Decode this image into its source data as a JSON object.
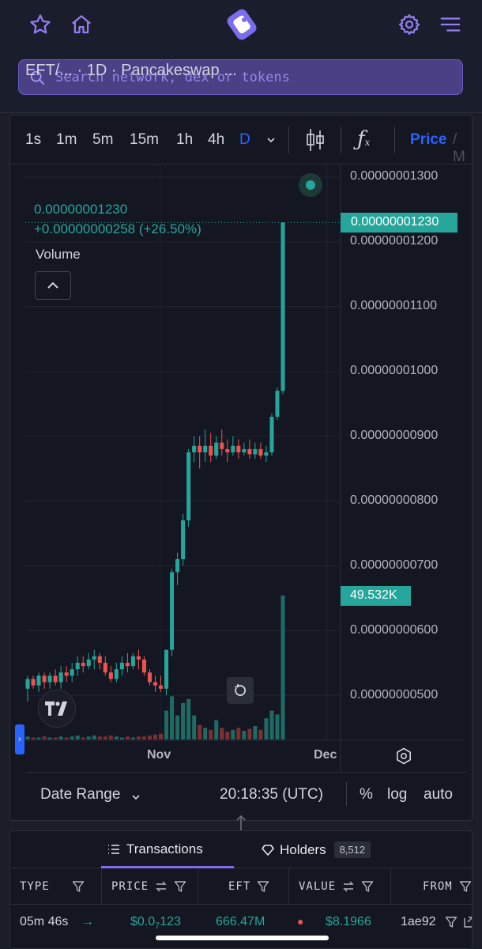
{
  "header": {
    "search_placeholder": "Search network, dex or tokens",
    "icons": [
      "star-icon",
      "home-icon",
      "logo-icon",
      "gear-icon",
      "menu-icon"
    ],
    "accent": "#7b6cf0"
  },
  "chart_toolbar": {
    "timeframes": [
      "1s",
      "1m",
      "5m",
      "15m",
      "1h",
      "4h",
      "D"
    ],
    "active_timeframe": "D",
    "price_tab": "Price",
    "price_tab_rest": "/ M"
  },
  "legend": {
    "title": "EFT/...   · 1D · Pancakeswap ...",
    "price": "0.00000001230",
    "change": "+0.00000000258 (+26.50%)",
    "volume_label": "Volume"
  },
  "price_tag": "0.00000001230",
  "volume_tag": "49.532K",
  "colors": {
    "up": "#26a69a",
    "down": "#ef5350",
    "up_volume": "#1f6b63",
    "down_volume": "#7d2f34"
  },
  "chart_data": {
    "type": "candlestick",
    "title": "",
    "ylim": [
      4.5e-09,
      1.34e-08
    ],
    "y_ticks": [
      "0.00000001300",
      "0.00000001200",
      "0.00000001100",
      "0.00000001000",
      "0.00000000900",
      "0.00000000800",
      "0.00000000700",
      "0.00000000600",
      "0.00000000500"
    ],
    "x_ticks": [
      "Nov",
      "Dec"
    ],
    "last_price": 1.23e-08,
    "last_volume": "49.532K",
    "candles": [
      {
        "o": 5.1,
        "h": 5.3,
        "l": 4.9,
        "c": 5.25,
        "v": 3
      },
      {
        "o": 5.25,
        "h": 5.3,
        "l": 5.1,
        "c": 5.15,
        "v": 2
      },
      {
        "o": 5.15,
        "h": 5.35,
        "l": 5.05,
        "c": 5.3,
        "v": 2
      },
      {
        "o": 5.3,
        "h": 5.35,
        "l": 5.1,
        "c": 5.2,
        "v": 3
      },
      {
        "o": 5.2,
        "h": 5.35,
        "l": 5.1,
        "c": 5.3,
        "v": 2
      },
      {
        "o": 5.3,
        "h": 5.4,
        "l": 5.15,
        "c": 5.2,
        "v": 2
      },
      {
        "o": 5.2,
        "h": 5.45,
        "l": 5.1,
        "c": 5.35,
        "v": 3
      },
      {
        "o": 5.35,
        "h": 5.45,
        "l": 5.2,
        "c": 5.3,
        "v": 2
      },
      {
        "o": 5.3,
        "h": 5.5,
        "l": 5.2,
        "c": 5.4,
        "v": 3
      },
      {
        "o": 5.4,
        "h": 5.6,
        "l": 5.3,
        "c": 5.5,
        "v": 4
      },
      {
        "o": 5.5,
        "h": 5.6,
        "l": 5.35,
        "c": 5.45,
        "v": 2
      },
      {
        "o": 5.45,
        "h": 5.65,
        "l": 5.4,
        "c": 5.55,
        "v": 3
      },
      {
        "o": 5.55,
        "h": 5.7,
        "l": 5.4,
        "c": 5.6,
        "v": 4
      },
      {
        "o": 5.6,
        "h": 5.65,
        "l": 5.4,
        "c": 5.5,
        "v": 3
      },
      {
        "o": 5.5,
        "h": 5.6,
        "l": 5.3,
        "c": 5.35,
        "v": 3
      },
      {
        "o": 5.35,
        "h": 5.45,
        "l": 5.2,
        "c": 5.25,
        "v": 4
      },
      {
        "o": 5.25,
        "h": 5.5,
        "l": 5.2,
        "c": 5.4,
        "v": 3
      },
      {
        "o": 5.4,
        "h": 5.6,
        "l": 5.3,
        "c": 5.5,
        "v": 2
      },
      {
        "o": 5.5,
        "h": 5.65,
        "l": 5.35,
        "c": 5.45,
        "v": 3
      },
      {
        "o": 5.45,
        "h": 5.65,
        "l": 5.4,
        "c": 5.6,
        "v": 2
      },
      {
        "o": 5.6,
        "h": 5.7,
        "l": 5.4,
        "c": 5.55,
        "v": 3
      },
      {
        "o": 5.55,
        "h": 5.6,
        "l": 5.3,
        "c": 5.35,
        "v": 3
      },
      {
        "o": 5.35,
        "h": 5.4,
        "l": 5.15,
        "c": 5.2,
        "v": 4
      },
      {
        "o": 5.2,
        "h": 5.3,
        "l": 5.05,
        "c": 5.15,
        "v": 5
      },
      {
        "o": 5.15,
        "h": 5.3,
        "l": 5.05,
        "c": 5.1,
        "v": 6
      },
      {
        "o": 5.1,
        "h": 5.7,
        "l": 5.0,
        "c": 5.7,
        "v": 30
      },
      {
        "o": 5.7,
        "h": 6.95,
        "l": 5.6,
        "c": 6.9,
        "v": 45
      },
      {
        "o": 6.9,
        "h": 7.2,
        "l": 6.7,
        "c": 7.1,
        "v": 25
      },
      {
        "o": 7.1,
        "h": 7.8,
        "l": 7.0,
        "c": 7.7,
        "v": 38
      },
      {
        "o": 7.7,
        "h": 8.8,
        "l": 7.6,
        "c": 8.75,
        "v": 42
      },
      {
        "o": 8.75,
        "h": 9.0,
        "l": 8.6,
        "c": 8.85,
        "v": 25
      },
      {
        "o": 8.85,
        "h": 9.0,
        "l": 8.5,
        "c": 8.75,
        "v": 15
      },
      {
        "o": 8.75,
        "h": 9.1,
        "l": 8.6,
        "c": 8.85,
        "v": 12
      },
      {
        "o": 8.85,
        "h": 9.05,
        "l": 8.6,
        "c": 8.7,
        "v": 10
      },
      {
        "o": 8.7,
        "h": 9.0,
        "l": 8.65,
        "c": 8.9,
        "v": 20
      },
      {
        "o": 8.9,
        "h": 9.1,
        "l": 8.7,
        "c": 8.8,
        "v": 12
      },
      {
        "o": 8.8,
        "h": 8.95,
        "l": 8.6,
        "c": 8.75,
        "v": 8
      },
      {
        "o": 8.75,
        "h": 9.0,
        "l": 8.7,
        "c": 8.85,
        "v": 10
      },
      {
        "o": 8.85,
        "h": 8.95,
        "l": 8.65,
        "c": 8.75,
        "v": 12
      },
      {
        "o": 8.75,
        "h": 8.9,
        "l": 8.7,
        "c": 8.8,
        "v": 9
      },
      {
        "o": 8.8,
        "h": 8.95,
        "l": 8.65,
        "c": 8.72,
        "v": 11
      },
      {
        "o": 8.72,
        "h": 8.9,
        "l": 8.65,
        "c": 8.8,
        "v": 14
      },
      {
        "o": 8.8,
        "h": 8.9,
        "l": 8.65,
        "c": 8.7,
        "v": 10
      },
      {
        "o": 8.7,
        "h": 8.85,
        "l": 8.6,
        "c": 8.75,
        "v": 22
      },
      {
        "o": 8.75,
        "h": 9.35,
        "l": 8.7,
        "c": 9.3,
        "v": 30
      },
      {
        "o": 9.3,
        "h": 9.75,
        "l": 9.25,
        "c": 9.7,
        "v": 26
      },
      {
        "o": 9.7,
        "h": 12.3,
        "l": 9.65,
        "c": 12.3,
        "v": 150
      }
    ],
    "units_note_scale": "values above are in units of 1e-9"
  },
  "time_axis": {
    "labels": [
      "Nov",
      "Dec"
    ]
  },
  "bottom_bar": {
    "date_range": "Date Range",
    "time": "20:18:35 (UTC)",
    "percent": "%",
    "log": "log",
    "auto": "auto"
  },
  "transactions": {
    "tabs": [
      {
        "label": "Transactions",
        "active": true
      },
      {
        "label": "Holders",
        "badge": "8,512"
      }
    ],
    "columns": [
      "TYPE",
      "PRICE",
      "EFT",
      "VALUE",
      "FROM"
    ],
    "rows": [
      {
        "type": "05m 46s",
        "price": "$0.0",
        "price_sub": "7",
        "price_rest": "123",
        "eft": "666.47M",
        "value": "$8.1966",
        "from": "1ae92"
      }
    ]
  }
}
